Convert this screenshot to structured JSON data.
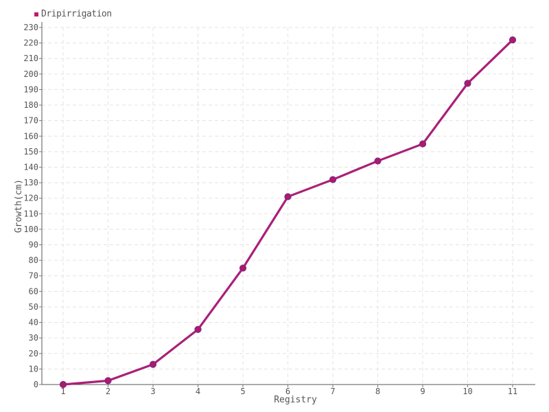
{
  "chart_data": {
    "type": "line",
    "title": "",
    "xlabel": "Registry",
    "ylabel": "Growth(cm)",
    "categories": [
      "1",
      "2",
      "3",
      "4",
      "5",
      "6",
      "7",
      "8",
      "9",
      "10",
      "11"
    ],
    "series": [
      {
        "name": "Dripirrigation",
        "color": "#c2186f",
        "values": [
          0,
          2.5,
          13,
          35.5,
          75,
          121,
          132,
          144,
          155,
          194,
          222
        ]
      }
    ],
    "ylim": [
      0,
      230
    ],
    "ytick_step": 10,
    "grid": true,
    "legend": "top-left"
  },
  "legend": {
    "label": "Dripirrigation",
    "color": "#c2186f"
  }
}
